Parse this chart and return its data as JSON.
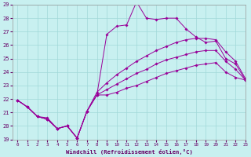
{
  "xlabel": "Windchill (Refroidissement éolien,°C)",
  "ylabel": "",
  "xlim": [
    -0.5,
    23
  ],
  "ylim": [
    19,
    29
  ],
  "yticks": [
    19,
    20,
    21,
    22,
    23,
    24,
    25,
    26,
    27,
    28,
    29
  ],
  "xticks": [
    0,
    1,
    2,
    3,
    4,
    5,
    6,
    7,
    8,
    9,
    10,
    11,
    12,
    13,
    14,
    15,
    16,
    17,
    18,
    19,
    20,
    21,
    22,
    23
  ],
  "bg_color": "#c8f0f0",
  "grid_color": "#a0d8d8",
  "line_color": "#990099",
  "series": [
    {
      "x": [
        0,
        1,
        2,
        3,
        4,
        5,
        6,
        7,
        8,
        9,
        10,
        11,
        12,
        13,
        14,
        15,
        16,
        17,
        18,
        19,
        20,
        21,
        22,
        23
      ],
      "y": [
        21.9,
        21.4,
        20.7,
        20.6,
        19.8,
        20.0,
        19.1,
        21.1,
        22.3,
        26.8,
        27.4,
        27.5,
        29.2,
        28.0,
        27.9,
        28.0,
        28.0,
        27.2,
        26.6,
        26.2,
        26.3,
        25.0,
        24.6,
        23.4
      ]
    },
    {
      "x": [
        0,
        1,
        2,
        3,
        4,
        5,
        6,
        7,
        8,
        9,
        10,
        11,
        12,
        13,
        14,
        15,
        16,
        17,
        18,
        19,
        20,
        21,
        22,
        23
      ],
      "y": [
        21.9,
        21.4,
        20.7,
        20.5,
        19.8,
        20.0,
        19.1,
        21.1,
        22.5,
        23.2,
        23.8,
        24.3,
        24.8,
        25.2,
        25.6,
        25.9,
        26.2,
        26.4,
        26.5,
        26.5,
        26.4,
        25.5,
        24.8,
        23.5
      ]
    },
    {
      "x": [
        0,
        1,
        2,
        3,
        4,
        5,
        6,
        7,
        8,
        9,
        10,
        11,
        12,
        13,
        14,
        15,
        16,
        17,
        18,
        19,
        20,
        21,
        22,
        23
      ],
      "y": [
        21.9,
        21.4,
        20.7,
        20.5,
        19.8,
        20.0,
        19.1,
        21.1,
        22.3,
        22.7,
        23.1,
        23.5,
        23.9,
        24.2,
        24.6,
        24.9,
        25.1,
        25.3,
        25.5,
        25.6,
        25.6,
        24.8,
        24.2,
        23.4
      ]
    },
    {
      "x": [
        0,
        1,
        2,
        3,
        4,
        5,
        6,
        7,
        8,
        9,
        10,
        11,
        12,
        13,
        14,
        15,
        16,
        17,
        18,
        19,
        20,
        21,
        22,
        23
      ],
      "y": [
        21.9,
        21.4,
        20.7,
        20.5,
        19.8,
        20.0,
        19.1,
        21.1,
        22.3,
        22.3,
        22.5,
        22.8,
        23.0,
        23.3,
        23.6,
        23.9,
        24.1,
        24.3,
        24.5,
        24.6,
        24.7,
        24.0,
        23.6,
        23.4
      ]
    }
  ]
}
